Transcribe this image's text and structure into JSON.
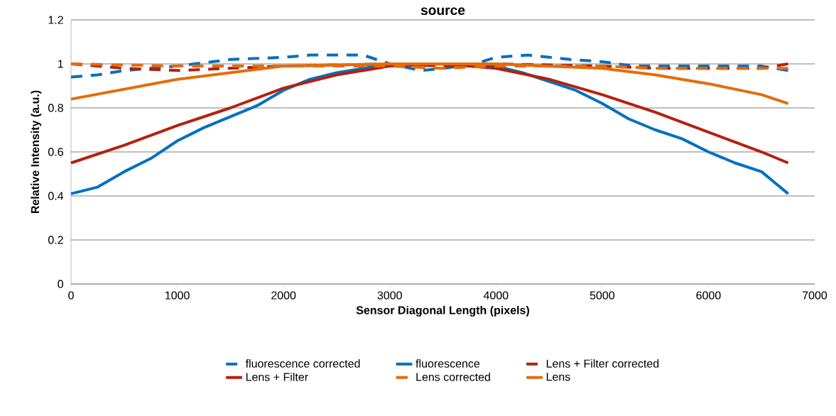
{
  "chart_data": {
    "type": "line",
    "title": "source",
    "xlabel": "Sensor Diagonal Length (pixels)",
    "ylabel": "Relative Intensity (a.u.)",
    "xlim": [
      0,
      7000
    ],
    "ylim": [
      0,
      1.2
    ],
    "xticks": [
      0,
      1000,
      2000,
      3000,
      4000,
      5000,
      6000,
      7000
    ],
    "yticks": [
      0,
      0.2,
      0.4,
      0.6,
      0.8,
      1,
      1.2
    ],
    "grid": "y",
    "legend": "bottom",
    "marker": "none",
    "series": [
      {
        "name": "fluorescence corrected",
        "color": "#0070c0",
        "line_style": "dashed",
        "x": [
          0,
          250,
          500,
          1000,
          1500,
          2000,
          2250,
          2750,
          3000,
          3300,
          3500,
          3800,
          4000,
          4300,
          4700,
          5000,
          5300,
          6500,
          6750
        ],
        "values": [
          0.94,
          0.95,
          0.97,
          0.99,
          1.02,
          1.03,
          1.04,
          1.04,
          1.0,
          0.97,
          0.98,
          1.0,
          1.03,
          1.04,
          1.02,
          1.01,
          0.99,
          0.99,
          0.97
        ]
      },
      {
        "name": "fluorescence",
        "color": "#0070c0",
        "line_style": "solid",
        "x": [
          0,
          250,
          500,
          750,
          1000,
          1250,
          1500,
          1750,
          2000,
          2250,
          2500,
          2750,
          3000,
          3500,
          4000,
          4250,
          4500,
          4750,
          5000,
          5250,
          5500,
          5750,
          6000,
          6250,
          6500,
          6750
        ],
        "values": [
          0.41,
          0.44,
          0.51,
          0.57,
          0.65,
          0.71,
          0.76,
          0.81,
          0.88,
          0.93,
          0.96,
          0.98,
          1.0,
          1.0,
          0.99,
          0.96,
          0.92,
          0.88,
          0.82,
          0.75,
          0.7,
          0.66,
          0.6,
          0.55,
          0.51,
          0.41
        ]
      },
      {
        "name": "Lens + Filter corrected",
        "color": "#b5200e",
        "line_style": "dashed",
        "x": [
          0,
          500,
          1000,
          1500,
          2000,
          3000,
          3500,
          4000,
          5000,
          5500,
          6000,
          6500,
          6750
        ],
        "values": [
          1.0,
          0.98,
          0.97,
          0.98,
          0.99,
          1.0,
          0.99,
          1.0,
          0.99,
          0.98,
          0.98,
          0.98,
          1.0
        ]
      },
      {
        "name": "Lens + Filter",
        "color": "#b5200e",
        "line_style": "solid",
        "x": [
          0,
          500,
          1000,
          1500,
          2000,
          2500,
          3000,
          3500,
          4000,
          4500,
          5000,
          5500,
          6000,
          6500,
          6750
        ],
        "values": [
          0.55,
          0.63,
          0.72,
          0.8,
          0.89,
          0.95,
          0.99,
          1.0,
          0.98,
          0.93,
          0.86,
          0.78,
          0.69,
          0.6,
          0.55
        ]
      },
      {
        "name": "Lens corrected",
        "color": "#e46c0a",
        "line_style": "dashed",
        "x": [
          0,
          1000,
          2000,
          3000,
          3500,
          4000,
          5000,
          5500,
          6000,
          6500,
          6750
        ],
        "values": [
          1.0,
          0.99,
          0.99,
          0.99,
          0.98,
          0.99,
          0.99,
          0.98,
          0.98,
          0.98,
          0.98
        ]
      },
      {
        "name": "Lens",
        "color": "#e46c0a",
        "line_style": "solid",
        "x": [
          0,
          1000,
          2000,
          3000,
          4000,
          5000,
          5500,
          6000,
          6500,
          6750
        ],
        "values": [
          0.84,
          0.93,
          0.99,
          1.0,
          1.0,
          0.98,
          0.95,
          0.91,
          0.86,
          0.82
        ]
      }
    ]
  }
}
